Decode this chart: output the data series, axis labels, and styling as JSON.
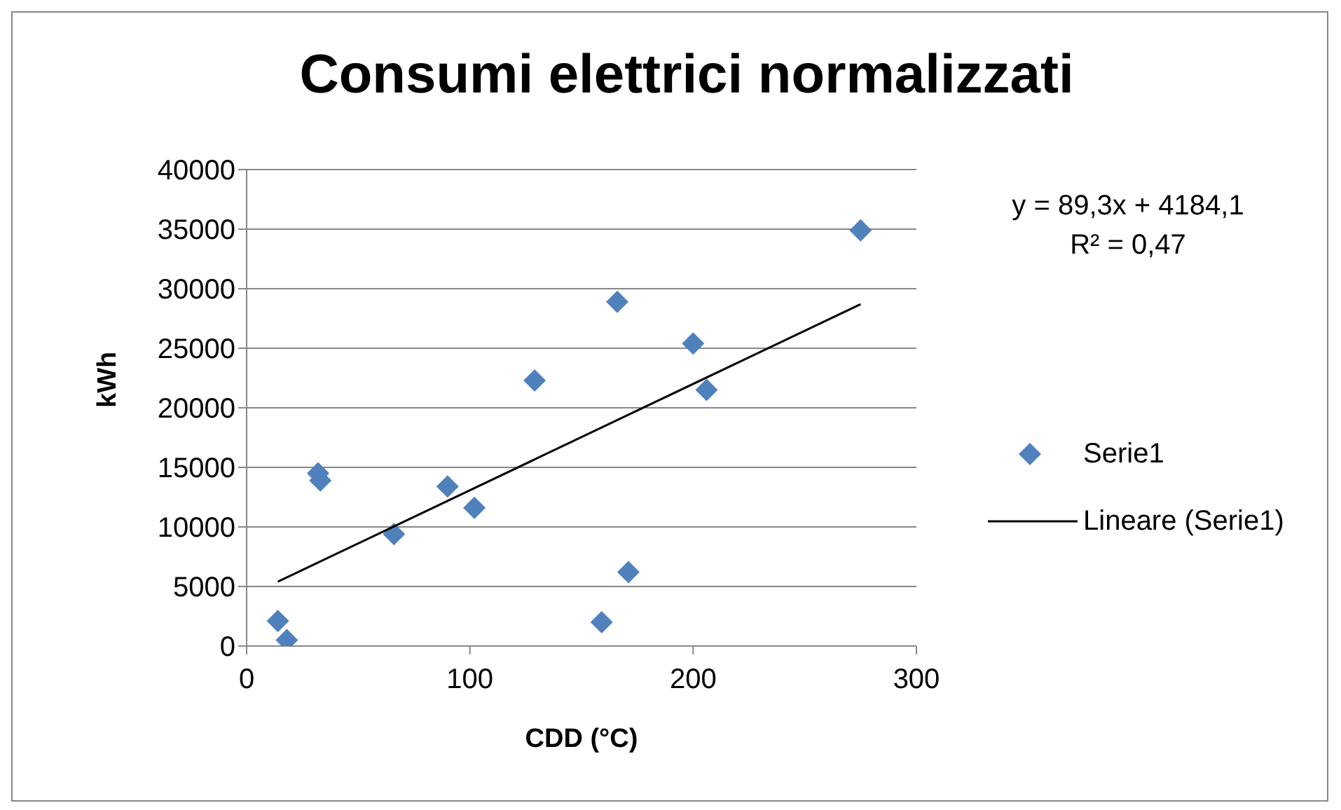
{
  "chart_data": {
    "type": "scatter",
    "title": "Consumi elettrici normalizzati",
    "xlabel": "CDD (°C)",
    "ylabel": "kWh",
    "xlim": [
      0,
      300
    ],
    "xticks": [
      0,
      100,
      200,
      300
    ],
    "ylim": [
      0,
      40000
    ],
    "yticks": [
      0,
      5000,
      10000,
      15000,
      20000,
      25000,
      30000,
      35000,
      40000
    ],
    "grid": "y",
    "legend": "right",
    "series": [
      {
        "name": "Serie1",
        "marker": "diamond",
        "color": "#4f81bd",
        "x": [
          14,
          18,
          32,
          33,
          66,
          90,
          102,
          129,
          159,
          166,
          171,
          200,
          206,
          275
        ],
        "values": [
          2100,
          500,
          14500,
          13900,
          9400,
          13400,
          11600,
          22300,
          2000,
          28900,
          6200,
          25400,
          21500,
          34900
        ]
      },
      {
        "name": "Lineare (Serie1)",
        "type": "line",
        "color": "#000000",
        "x": [
          14,
          275
        ],
        "values": [
          5400,
          28700
        ]
      }
    ],
    "annotations": [
      "y = 89,3x + 4184,1",
      "R² = 0,47"
    ]
  }
}
